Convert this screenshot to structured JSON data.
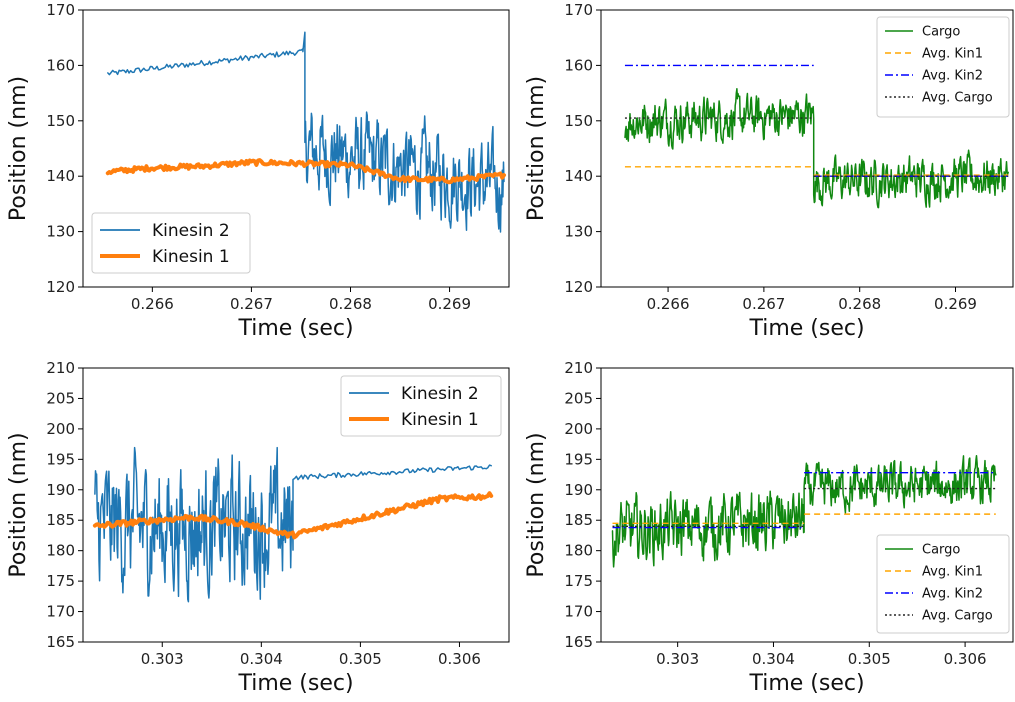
{
  "chart_data": [
    {
      "type": "line",
      "panel": "top-left",
      "xlabel": "Time (sec)",
      "ylabel": "Position (nm)",
      "xlim": [
        0.2653,
        0.2696
      ],
      "ylim": [
        120,
        170
      ],
      "xticks": [
        0.266,
        0.267,
        0.268,
        0.269
      ],
      "xtick_labels": [
        "0.266",
        "0.267",
        "0.268",
        "0.269"
      ],
      "yticks": [
        120,
        130,
        140,
        150,
        160,
        170
      ],
      "ytick_labels": [
        "120",
        "130",
        "140",
        "150",
        "160",
        "170"
      ],
      "legend_position": "lower-left",
      "series": [
        {
          "name": "Kinesin 2",
          "color": "#1f77b4",
          "style": "solid",
          "width": 1.5,
          "segments": [
            {
              "kind": "drift",
              "x": [
                0.26555,
                0.26752
              ],
              "y": [
                158.5,
                162.5
              ],
              "noise": 0.5
            },
            {
              "kind": "spike",
              "x": [
                0.26752,
                0.26754
              ],
              "y": [
                162.5,
                166
              ]
            },
            {
              "kind": "jitter",
              "x": [
                0.26754,
                0.26955
              ],
              "y": [
                145,
                138
              ],
              "noise": 6
            }
          ]
        },
        {
          "name": "Kinesin 1",
          "color": "#ff7f0e",
          "style": "solid",
          "width": 4,
          "points": {
            "x": [
              0.26555,
              0.266,
              0.2665,
              0.267,
              0.2675,
              0.268,
              0.2685,
              0.269,
              0.26955
            ],
            "y": [
              140.8,
              141.5,
              141.8,
              142.5,
              142.3,
              142,
              139.5,
              139.3,
              140.2
            ]
          }
        }
      ]
    },
    {
      "type": "line",
      "panel": "top-right",
      "xlabel": "Time (sec)",
      "ylabel": "Position (nm)",
      "xlim": [
        0.2653,
        0.2696
      ],
      "ylim": [
        120,
        170
      ],
      "xticks": [
        0.266,
        0.267,
        0.268,
        0.269
      ],
      "xtick_labels": [
        "0.266",
        "0.267",
        "0.268",
        "0.269"
      ],
      "yticks": [
        120,
        130,
        140,
        150,
        160,
        170
      ],
      "ytick_labels": [
        "120",
        "130",
        "140",
        "150",
        "160",
        "170"
      ],
      "legend_position": "upper-right",
      "series": [
        {
          "name": "Cargo",
          "color": "#118811",
          "style": "solid",
          "width": 1.5,
          "segments": [
            {
              "kind": "jitter",
              "x": [
                0.26555,
                0.26752
              ],
              "y": [
                150,
                151
              ],
              "noise": 3
            },
            {
              "kind": "jitter",
              "x": [
                0.26752,
                0.26955
              ],
              "y": [
                139,
                140
              ],
              "noise": 3
            }
          ]
        },
        {
          "name": "Avg. Kin1",
          "color": "#ffa500",
          "style": "dashed",
          "width": 1.4,
          "steps": [
            {
              "x": [
                0.26555,
                0.26752
              ],
              "y": 141.7
            },
            {
              "x": [
                0.26752,
                0.26955
              ],
              "y": 140.2
            }
          ]
        },
        {
          "name": "Avg. Kin2",
          "color": "#0000ff",
          "style": "dashdot",
          "width": 1.4,
          "steps": [
            {
              "x": [
                0.26555,
                0.26752
              ],
              "y": 160
            },
            {
              "x": [
                0.26752,
                0.26955
              ],
              "y": 140
            }
          ]
        },
        {
          "name": "Avg. Cargo",
          "color": "#222222",
          "style": "dotted",
          "width": 1.4,
          "steps": [
            {
              "x": [
                0.26555,
                0.26752
              ],
              "y": 150.5
            },
            {
              "x": [
                0.26752,
                0.26955
              ],
              "y": 140
            }
          ]
        }
      ]
    },
    {
      "type": "line",
      "panel": "bottom-left",
      "xlabel": "Time (sec)",
      "ylabel": "Position (nm)",
      "xlim": [
        0.3022,
        0.3065
      ],
      "ylim": [
        165,
        210
      ],
      "xticks": [
        0.303,
        0.304,
        0.305,
        0.306
      ],
      "xtick_labels": [
        "0.303",
        "0.304",
        "0.305",
        "0.306"
      ],
      "yticks": [
        165,
        170,
        175,
        180,
        185,
        190,
        195,
        200,
        205,
        210
      ],
      "ytick_labels": [
        "165",
        "170",
        "175",
        "180",
        "185",
        "190",
        "195",
        "200",
        "205",
        "210"
      ],
      "legend_position": "upper-right",
      "series": [
        {
          "name": "Kinesin 2",
          "color": "#1f77b4",
          "style": "solid",
          "width": 1.5,
          "segments": [
            {
              "kind": "jitter",
              "x": [
                0.30232,
                0.30432
              ],
              "y": [
                184,
                184
              ],
              "noise": 8
            },
            {
              "kind": "drift",
              "x": [
                0.30432,
                0.30632
              ],
              "y": [
                192,
                193.8
              ],
              "noise": 0.4
            }
          ]
        },
        {
          "name": "Kinesin 1",
          "color": "#ff7f0e",
          "style": "solid",
          "width": 4,
          "points": {
            "x": [
              0.30232,
              0.3028,
              0.3033,
              0.3038,
              0.3043,
              0.3048,
              0.3053,
              0.3058,
              0.30632
            ],
            "y": [
              184,
              184.8,
              185.5,
              184.5,
              182.5,
              184.5,
              186.5,
              188.5,
              189
            ]
          }
        }
      ]
    },
    {
      "type": "line",
      "panel": "bottom-right",
      "xlabel": "Time (sec)",
      "ylabel": "Position (nm)",
      "xlim": [
        0.3022,
        0.3065
      ],
      "ylim": [
        165,
        210
      ],
      "xticks": [
        0.303,
        0.304,
        0.305,
        0.306
      ],
      "xtick_labels": [
        "0.303",
        "0.304",
        "0.305",
        "0.306"
      ],
      "yticks": [
        165,
        170,
        175,
        180,
        185,
        190,
        195,
        200,
        205,
        210
      ],
      "ytick_labels": [
        "165",
        "170",
        "175",
        "180",
        "185",
        "190",
        "195",
        "200",
        "205",
        "210"
      ],
      "legend_position": "lower-right",
      "series": [
        {
          "name": "Cargo",
          "color": "#118811",
          "style": "solid",
          "width": 1.5,
          "segments": [
            {
              "kind": "jitter",
              "x": [
                0.30232,
                0.30432
              ],
              "y": [
                183,
                185
              ],
              "noise": 4
            },
            {
              "kind": "jitter",
              "x": [
                0.30432,
                0.30632
              ],
              "y": [
                190,
                191
              ],
              "noise": 2.8
            }
          ]
        },
        {
          "name": "Avg. Kin1",
          "color": "#ffa500",
          "style": "dashed",
          "width": 1.4,
          "steps": [
            {
              "x": [
                0.30232,
                0.30432
              ],
              "y": 184.5
            },
            {
              "x": [
                0.30432,
                0.30632
              ],
              "y": 186
            }
          ]
        },
        {
          "name": "Avg. Kin2",
          "color": "#0000ff",
          "style": "dashdot",
          "width": 1.4,
          "steps": [
            {
              "x": [
                0.30232,
                0.30432
              ],
              "y": 183.8
            },
            {
              "x": [
                0.30432,
                0.30632
              ],
              "y": 192.8
            }
          ]
        },
        {
          "name": "Avg. Cargo",
          "color": "#222222",
          "style": "dotted",
          "width": 1.4,
          "steps": [
            {
              "x": [
                0.30232,
                0.30432
              ],
              "y": 184
            },
            {
              "x": [
                0.30432,
                0.30632
              ],
              "y": 190.2
            }
          ]
        }
      ]
    }
  ]
}
